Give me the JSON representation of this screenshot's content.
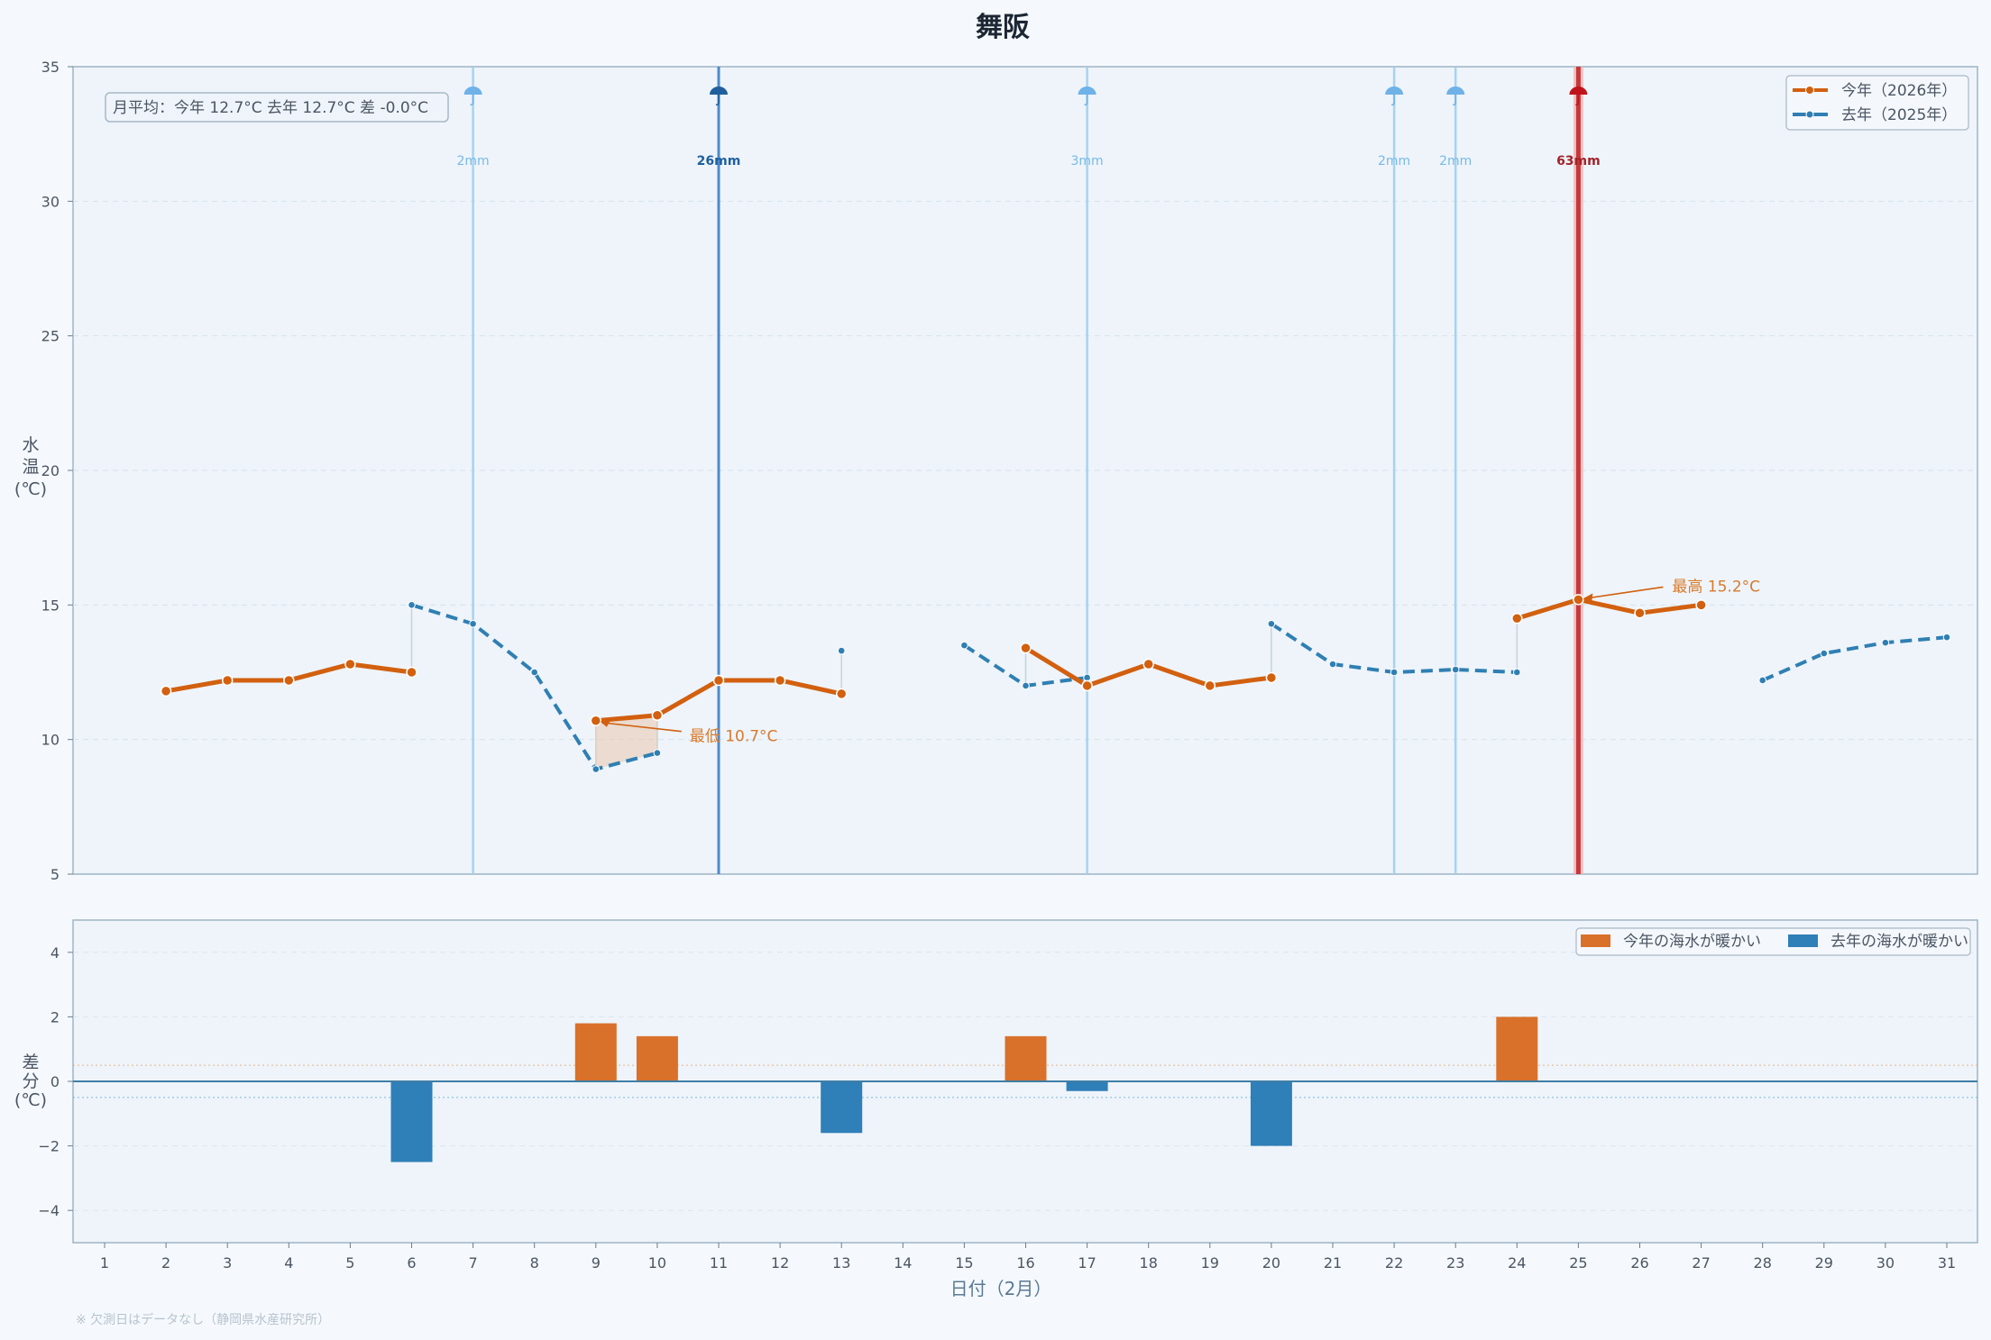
{
  "chart_data": [
    {
      "type": "line",
      "title": "舞阪",
      "xlabel": "日付（2月）",
      "ylabel": "水温(℃)",
      "ylim": [
        5,
        35
      ],
      "yticks": [
        "5",
        "10",
        "15",
        "20",
        "25",
        "30",
        "35"
      ],
      "x": [
        1,
        2,
        3,
        4,
        5,
        6,
        7,
        8,
        9,
        10,
        11,
        12,
        13,
        14,
        15,
        16,
        17,
        18,
        19,
        20,
        21,
        22,
        23,
        24,
        25,
        26,
        27,
        28,
        29,
        30,
        31
      ],
      "x_tick_labels": [
        "1",
        "2",
        "3",
        "4",
        "5",
        "6",
        "7",
        "8",
        "9",
        "10",
        "11",
        "12",
        "13",
        "14",
        "15",
        "16",
        "17",
        "18",
        "19",
        "20",
        "21",
        "22",
        "23",
        "24",
        "25",
        "26",
        "27",
        "28",
        "29",
        "30",
        "31"
      ],
      "series": [
        {
          "name": "今年（2026年）",
          "color": "#d2600f",
          "style": "solid",
          "values": [
            null,
            11.8,
            12.2,
            12.2,
            12.8,
            12.5,
            null,
            null,
            10.7,
            10.9,
            12.2,
            12.2,
            11.7,
            null,
            null,
            13.4,
            12.0,
            12.8,
            12.0,
            12.3,
            null,
            null,
            null,
            14.5,
            15.2,
            14.7,
            15.0,
            null,
            null,
            null,
            null
          ]
        },
        {
          "name": "去年（2025年）",
          "color": "#2f7fb3",
          "style": "dashed",
          "values": [
            null,
            null,
            null,
            null,
            null,
            15.0,
            14.3,
            12.5,
            8.9,
            9.5,
            null,
            null,
            13.3,
            null,
            13.5,
            12.0,
            12.3,
            null,
            null,
            14.3,
            12.8,
            12.5,
            12.6,
            12.5,
            null,
            null,
            null,
            12.2,
            13.2,
            13.6,
            13.8
          ]
        }
      ],
      "summary_box": "月平均：今年 12.7°C  去年 12.7°C  差 -0.0°C",
      "annotations": {
        "min_label": "最低 10.7°C",
        "min_day": 9,
        "min_value": 10.7,
        "max_label": "最高 15.2°C",
        "max_day": 25,
        "max_value": 15.2
      },
      "rain": [
        {
          "day": 7,
          "label": "2mm",
          "level": "light"
        },
        {
          "day": 11,
          "label": "26mm",
          "level": "medium"
        },
        {
          "day": 17,
          "label": "3mm",
          "level": "light"
        },
        {
          "day": 22,
          "label": "2mm",
          "level": "light"
        },
        {
          "day": 23,
          "label": "2mm",
          "level": "light"
        },
        {
          "day": 25,
          "label": "63mm",
          "level": "heavy"
        }
      ],
      "rain_colors": {
        "light": "#9fd0ef",
        "medium": "#3d7fc6",
        "heavy": "#c0292b"
      },
      "rain_label_colors": {
        "light": "#79b9e6",
        "medium": "#1f5f9e",
        "heavy": "#a3222a"
      },
      "rain_icon_colors": {
        "light": "#6fb2e8",
        "medium": "#1f5f9e",
        "heavy": "#c0141d"
      }
    },
    {
      "type": "bar",
      "ylabel": "差分(℃)",
      "ylim": [
        -5,
        5
      ],
      "yticks": [
        "−4",
        "−2",
        "0",
        "2",
        "4"
      ],
      "x": [
        6,
        9,
        10,
        13,
        16,
        17,
        20,
        24
      ],
      "values": [
        -2.5,
        1.8,
        1.4,
        -1.6,
        1.4,
        -0.3,
        -2.0,
        2.0
      ],
      "legend": [
        {
          "label": "今年の海水が暖かい",
          "color": "#d9712a"
        },
        {
          "label": "去年の海水が暖かい",
          "color": "#2f7fb8"
        }
      ]
    }
  ],
  "footnote": "※ 欠測日はデータなし（静岡県水産研究所）"
}
